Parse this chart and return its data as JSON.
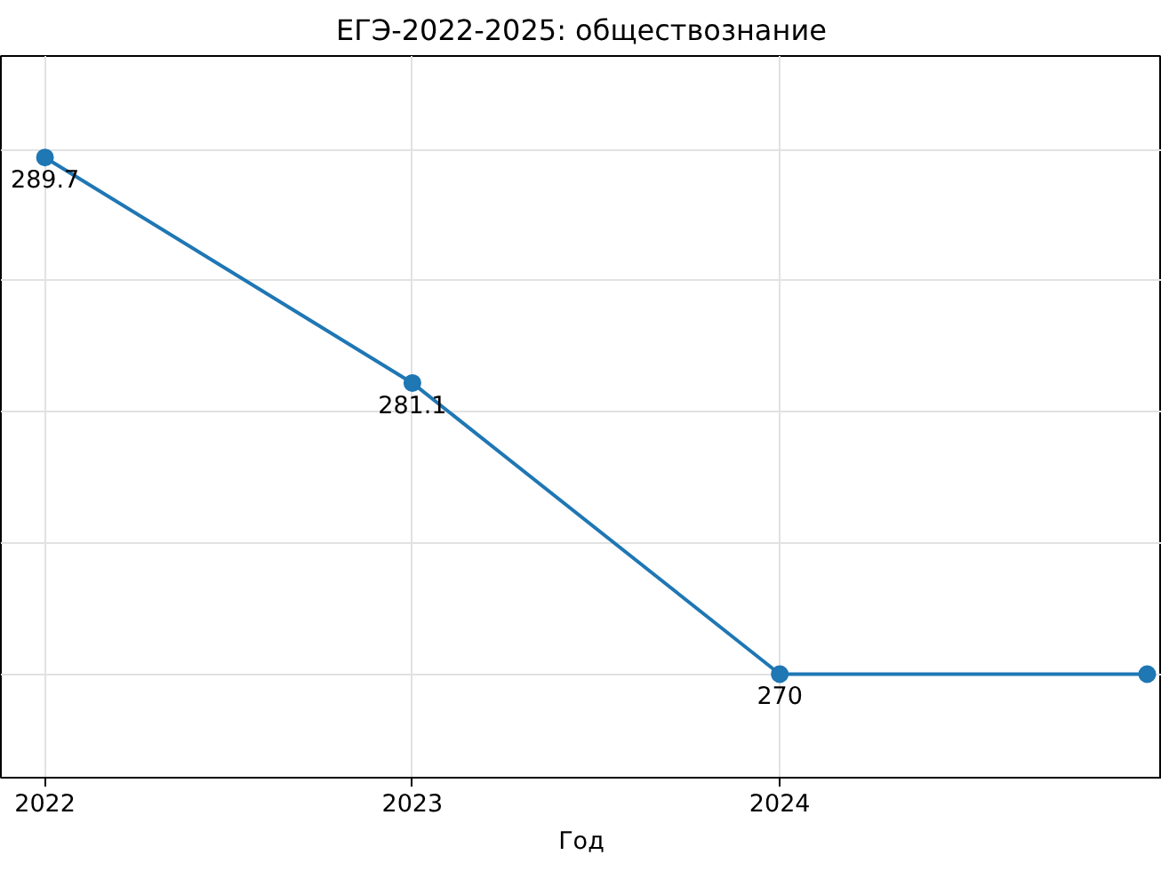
{
  "chart_data": {
    "type": "line",
    "title": "ЕГЭ-2022-2025: обществознание",
    "xlabel": "Год",
    "x": [
      2022,
      2023,
      2024,
      2025
    ],
    "series": [
      {
        "color": "#1f77b4",
        "values": [
          289.7,
          281.1,
          270,
          270
        ],
        "value_labels": [
          "289.7",
          "281.1",
          "270",
          null
        ]
      }
    ],
    "xlim": [
      2021.88,
      2025.04
    ],
    "xticks": [
      2022,
      2023,
      2024
    ],
    "ylim": [
      266.05,
      293.57
    ],
    "yticks": [
      {
        "value": 270,
        "label": null
      },
      {
        "value": 275,
        "label": null
      },
      {
        "value": 280,
        "label": null
      },
      {
        "value": 285,
        "label": null
      },
      {
        "value": 290,
        "label": null
      }
    ],
    "tick_labels": "x",
    "grid": true,
    "marker": "circle",
    "line_style": "solid"
  }
}
